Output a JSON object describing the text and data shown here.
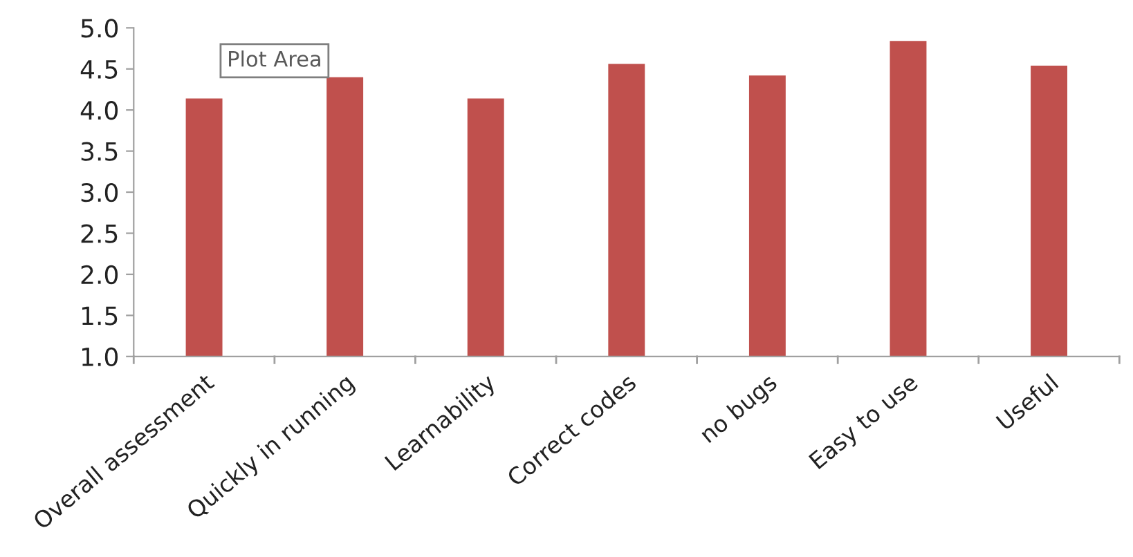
{
  "chart_data": {
    "type": "bar",
    "categories": [
      "Overall assessment",
      "Quickly in running",
      "Learnability",
      "Correct codes",
      "no bugs",
      "Easy to use",
      "Useful"
    ],
    "values": [
      4.14,
      4.4,
      4.14,
      4.56,
      4.42,
      4.84,
      4.54
    ],
    "color": "#c0504d",
    "ylim": [
      1.0,
      5.0
    ],
    "yticks": [
      {
        "value": 1.0,
        "label": "1.0"
      },
      {
        "value": 1.5,
        "label": "1.5"
      },
      {
        "value": 2.0,
        "label": "2.0"
      },
      {
        "value": 2.5,
        "label": "2.5"
      },
      {
        "value": 3.0,
        "label": "3.0"
      },
      {
        "value": 3.5,
        "label": "3.5"
      },
      {
        "value": 4.0,
        "label": "4.0"
      },
      {
        "value": 4.5,
        "label": "4.5"
      },
      {
        "value": 5.0,
        "label": "5.0"
      }
    ],
    "annotations": [
      "Plot Area"
    ],
    "grid": false
  }
}
